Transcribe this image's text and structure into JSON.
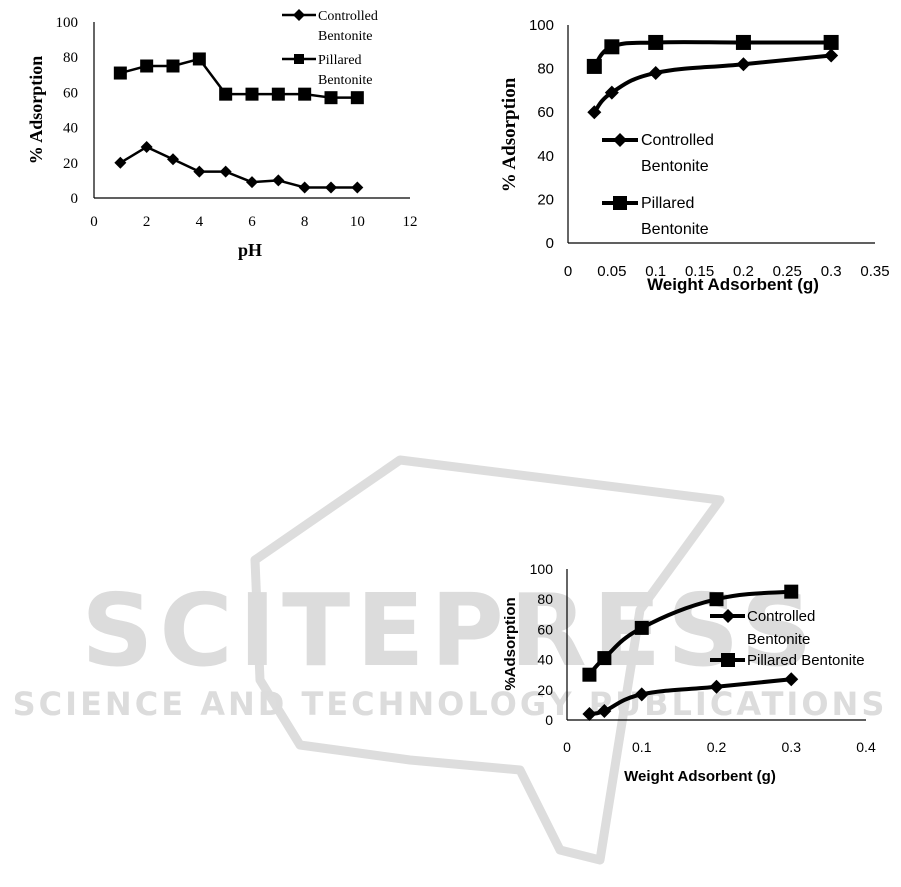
{
  "colors": {
    "series": "#000000",
    "axis": "#000000",
    "watermark": "#d8d8d8"
  },
  "watermark": {
    "title": "SCITEPRESS",
    "subtitle": "SCIENCE AND TECHNOLOGY PUBLICATIONS"
  },
  "chart_data": [
    {
      "type": "line",
      "id": "chart1",
      "title": "",
      "xlabel": "pH",
      "ylabel": "% Adsorption",
      "xlim": [
        0,
        12
      ],
      "ylim": [
        0,
        100
      ],
      "xticks": [
        0,
        2,
        4,
        6,
        8,
        10,
        12
      ],
      "yticks": [
        0,
        20,
        40,
        60,
        80,
        100
      ],
      "xtick_labels": [
        "0",
        "2",
        "4",
        "6",
        "8",
        "10",
        "12"
      ],
      "ytick_labels": [
        "0",
        "20",
        "40",
        "60",
        "80",
        "100"
      ],
      "legend_position": "top-right",
      "series": [
        {
          "name": "Controlled Bentonite",
          "name_lines": [
            "Controlled",
            "Bentonite"
          ],
          "marker": "diamond",
          "x": [
            1,
            2,
            3,
            4,
            5,
            6,
            7,
            8,
            9,
            10
          ],
          "y": [
            20,
            29,
            22,
            15,
            15,
            9,
            10,
            6,
            6,
            6
          ]
        },
        {
          "name": "Pillared Bentonite",
          "name_lines": [
            "Pillared",
            "Bentonite"
          ],
          "marker": "square",
          "x": [
            1,
            2,
            3,
            4,
            5,
            6,
            7,
            8,
            9,
            10
          ],
          "y": [
            71,
            75,
            75,
            79,
            59,
            59,
            59,
            59,
            57,
            57
          ]
        }
      ]
    },
    {
      "type": "line",
      "id": "chart2",
      "title": "",
      "xlabel": "Weight Adsorbent (g)",
      "ylabel": "% Adsorption",
      "xlim": [
        0,
        0.35
      ],
      "ylim": [
        0,
        100
      ],
      "xticks": [
        0,
        0.05,
        0.1,
        0.15,
        0.2,
        0.25,
        0.3,
        0.35
      ],
      "yticks": [
        0,
        20,
        40,
        60,
        80,
        100
      ],
      "xtick_labels": [
        "0",
        "0.05",
        "0.1",
        "0.15",
        "0.2",
        "0.25",
        "0.3",
        "0.35"
      ],
      "ytick_labels": [
        "0",
        "20",
        "40",
        "60",
        "80",
        "100"
      ],
      "legend_position": "middle-left",
      "series": [
        {
          "name": "Controlled Bentonite",
          "name_lines": [
            "Controlled",
            "Bentonite"
          ],
          "marker": "diamond",
          "x": [
            0.03,
            0.05,
            0.1,
            0.2,
            0.3
          ],
          "y": [
            60,
            69,
            78,
            82,
            86
          ]
        },
        {
          "name": "Pillared Bentonite",
          "name_lines": [
            "Pillared",
            "Bentonite"
          ],
          "marker": "square",
          "x": [
            0.03,
            0.05,
            0.1,
            0.2,
            0.3
          ],
          "y": [
            81,
            90,
            92,
            92,
            92
          ]
        }
      ]
    },
    {
      "type": "line",
      "id": "chart3",
      "title": "",
      "xlabel": "Weight Adsorbent (g)",
      "ylabel": "%Adsorption",
      "xlim": [
        0,
        0.4
      ],
      "ylim": [
        0,
        100
      ],
      "xticks": [
        0,
        0.1,
        0.2,
        0.3,
        0.4
      ],
      "yticks": [
        0,
        20,
        40,
        60,
        80,
        100
      ],
      "xtick_labels": [
        "0",
        "0.1",
        "0.2",
        "0.3",
        "0.4"
      ],
      "ytick_labels": [
        "0",
        "20",
        "40",
        "60",
        "80",
        "100"
      ],
      "legend_position": "right",
      "series": [
        {
          "name": "Controlled Bentonite",
          "name_lines": [
            "Controlled",
            "Bentonite"
          ],
          "marker": "diamond",
          "x": [
            0.03,
            0.05,
            0.1,
            0.2,
            0.3
          ],
          "y": [
            4,
            6,
            17,
            22,
            27
          ]
        },
        {
          "name": "Pillared Bentonite",
          "name_lines": [
            "Pillared Bentonite"
          ],
          "marker": "square",
          "x": [
            0.03,
            0.05,
            0.1,
            0.2,
            0.3
          ],
          "y": [
            30,
            41,
            61,
            80,
            85
          ]
        }
      ]
    }
  ]
}
